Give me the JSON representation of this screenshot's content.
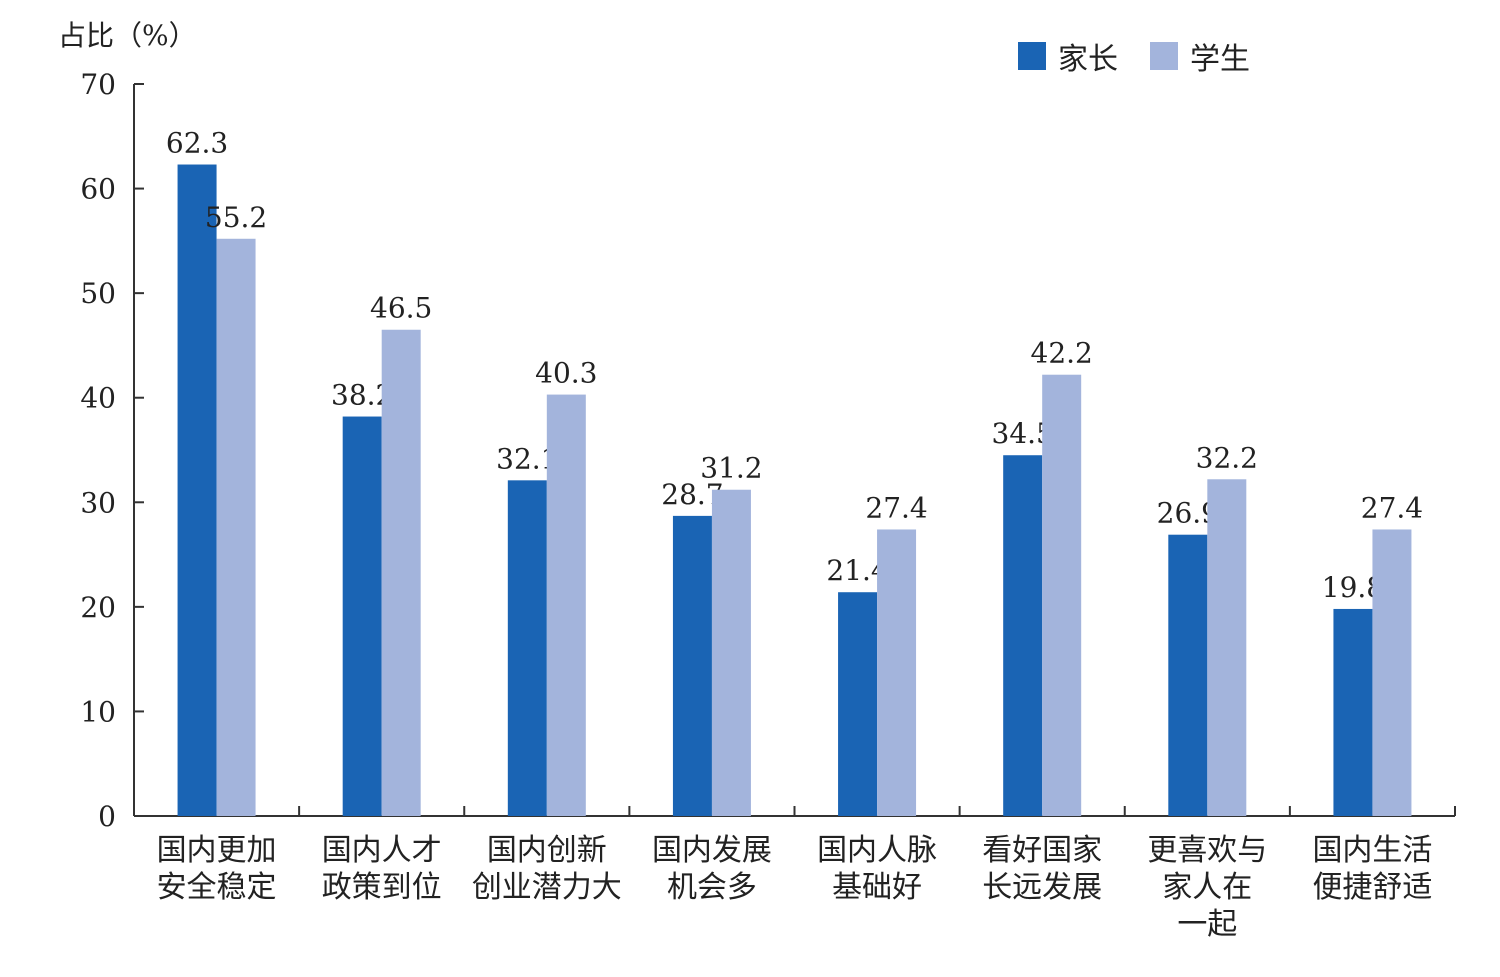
{
  "chart_data": {
    "type": "bar",
    "ylabel": "占比（%）",
    "ylim": [
      0,
      70
    ],
    "yticks": [
      0,
      10,
      20,
      30,
      40,
      50,
      60,
      70
    ],
    "categories": [
      [
        "国内更加",
        "安全稳定"
      ],
      [
        "国内人才",
        "政策到位"
      ],
      [
        "国内创新",
        "创业潜力大"
      ],
      [
        "国内发展",
        "机会多"
      ],
      [
        "国内人脉",
        "基础好"
      ],
      [
        "看好国家",
        "长远发展"
      ],
      [
        "更喜欢与",
        "家人在",
        "一起"
      ],
      [
        "国内生活",
        "便捷舒适"
      ]
    ],
    "series": [
      {
        "name": "家长",
        "color": "#1a64b4",
        "values": [
          62.3,
          38.2,
          32.1,
          28.7,
          21.4,
          34.5,
          26.9,
          19.8
        ]
      },
      {
        "name": "学生",
        "color": "#a3b4dc",
        "values": [
          55.2,
          46.5,
          40.3,
          31.2,
          27.4,
          42.2,
          32.2,
          27.4
        ]
      }
    ],
    "grid": false,
    "legend_position": "top-right"
  }
}
